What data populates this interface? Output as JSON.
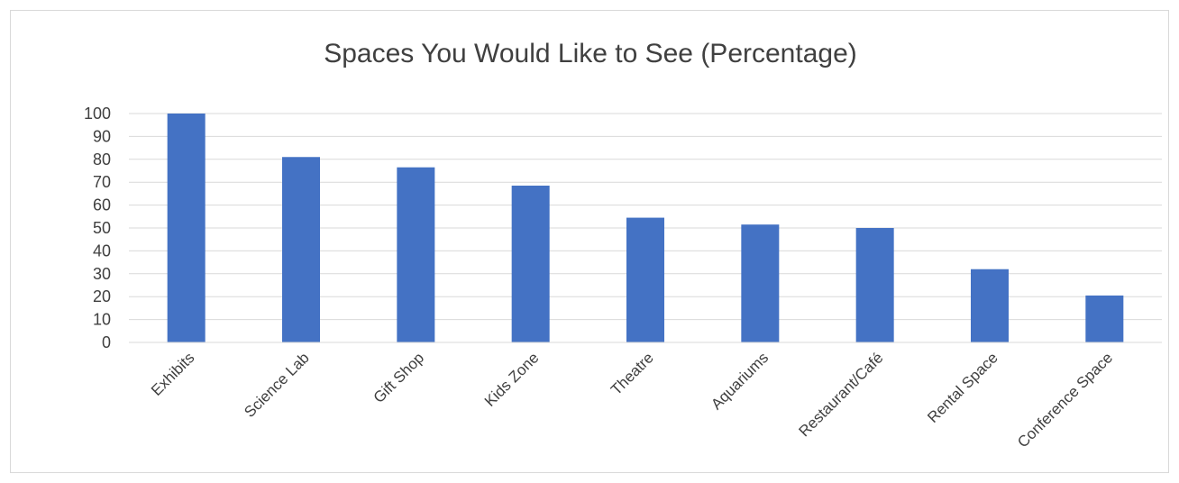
{
  "chart_data": {
    "type": "bar",
    "title": "Spaces You Would Like to See (Percentage)",
    "categories": [
      "Exhibits",
      "Science Lab",
      "Gift Shop",
      "Kids Zone",
      "Theatre",
      "Aquariums",
      "Restaurant/Café",
      "Rental Space",
      "Conference Space"
    ],
    "values": [
      100,
      81,
      76.5,
      68.5,
      54.5,
      51.5,
      50,
      32,
      20.5
    ],
    "xlabel": "",
    "ylabel": "",
    "ylim": [
      0,
      100
    ],
    "yticks": [
      0,
      10,
      20,
      30,
      40,
      50,
      60,
      70,
      80,
      90,
      100
    ],
    "grid": true,
    "legend": "none",
    "bar_color": "#4472C4",
    "grid_color": "#d9d9d9"
  }
}
